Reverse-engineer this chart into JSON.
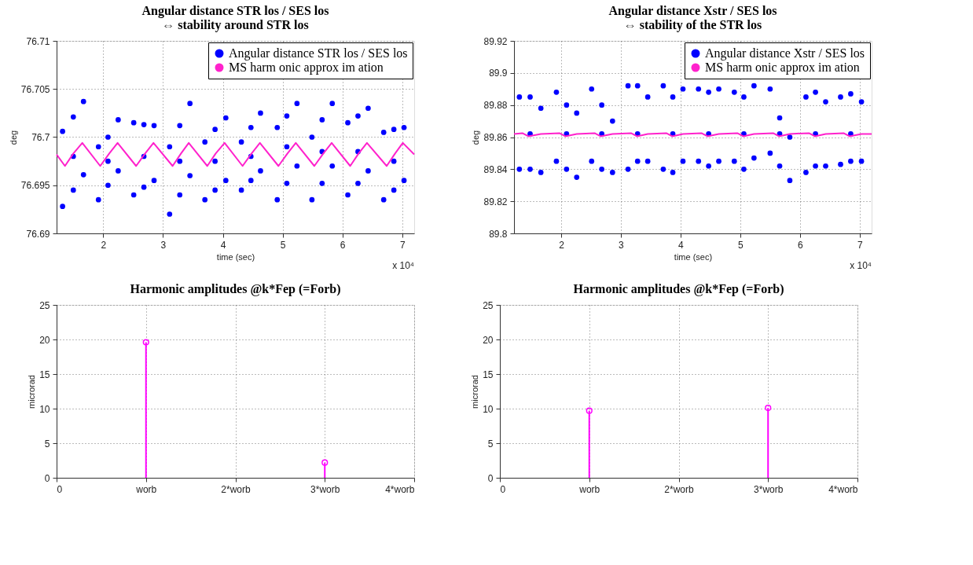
{
  "chart_data": [
    {
      "type": "scatter",
      "title": "Angular distance STR los / SES los\n⇔ stability around STR los",
      "xlabel": "time (sec)",
      "ylabel": "deg",
      "xlim": [
        1.22,
        7.2
      ],
      "xticks": [
        2,
        3,
        4,
        5,
        6,
        7
      ],
      "ylim": [
        76.69,
        76.71
      ],
      "yticks": [
        76.69,
        76.695,
        76.7,
        76.705,
        76.71
      ],
      "grid": true,
      "legend": "top right",
      "annotations": [
        "x 10⁴"
      ],
      "series": [
        {
          "name": "Angular distance STR los / SES los",
          "color": "#0000ff",
          "type": "scatter",
          "marker": "circle",
          "x": [
            1.32,
            1.32,
            1.5,
            1.5,
            1.5,
            1.67,
            1.67,
            1.92,
            1.92,
            2.08,
            2.08,
            2.08,
            2.25,
            2.25,
            2.51,
            2.51,
            2.68,
            2.68,
            2.68,
            2.85,
            2.85,
            3.11,
            3.11,
            3.28,
            3.28,
            3.28,
            3.45,
            3.45,
            3.7,
            3.7,
            3.87,
            3.87,
            3.87,
            4.05,
            4.05,
            4.31,
            4.31,
            4.47,
            4.47,
            4.47,
            4.63,
            4.63,
            4.91,
            4.91,
            5.07,
            5.07,
            5.07,
            5.24,
            5.24,
            5.49,
            5.49,
            5.66,
            5.66,
            5.66,
            5.83,
            5.83,
            6.09,
            6.09,
            6.26,
            6.26,
            6.26,
            6.43,
            6.43,
            6.69,
            6.69,
            6.86,
            6.86,
            6.86,
            7.03,
            7.03
          ],
          "values": [
            76.7006,
            76.6928,
            76.7021,
            76.6945,
            76.698,
            76.7037,
            76.6961,
            76.699,
            76.6935,
            76.7,
            76.695,
            76.6975,
            76.7018,
            76.6965,
            76.7015,
            76.694,
            76.7013,
            76.6948,
            76.698,
            76.7012,
            76.6955,
            76.699,
            76.692,
            76.7012,
            76.694,
            76.6975,
            76.7035,
            76.696,
            76.6995,
            76.6935,
            76.7008,
            76.6945,
            76.6975,
            76.702,
            76.6955,
            76.6995,
            76.6945,
            76.701,
            76.6955,
            76.698,
            76.7025,
            76.6965,
            76.701,
            76.6935,
            76.7022,
            76.6952,
            76.699,
            76.7035,
            76.697,
            76.7,
            76.6935,
            76.7018,
            76.6952,
            76.6985,
            76.7035,
            76.697,
            76.7015,
            76.694,
            76.7022,
            76.6952,
            76.6985,
            76.703,
            76.6965,
            76.7005,
            76.6935,
            76.7008,
            76.6945,
            76.6975,
            76.701,
            76.6955
          ]
        },
        {
          "name": "MS harm onic approx im ation",
          "color": "#ff22cc",
          "type": "line",
          "x": [
            1.22,
            1.36,
            1.5,
            1.65,
            1.95,
            2.1,
            2.24,
            2.55,
            2.7,
            2.84,
            3.16,
            3.3,
            3.43,
            3.74,
            3.88,
            4.03,
            4.33,
            4.48,
            4.62,
            4.93,
            5.08,
            5.22,
            5.53,
            5.68,
            5.82,
            6.13,
            6.27,
            6.41,
            6.74,
            6.88,
            7.01,
            7.2
          ],
          "values": [
            76.6982,
            76.697,
            76.6983,
            76.6994,
            76.697,
            76.6983,
            76.6994,
            76.697,
            76.6983,
            76.6994,
            76.697,
            76.6983,
            76.6994,
            76.697,
            76.6983,
            76.6994,
            76.697,
            76.6983,
            76.6994,
            76.697,
            76.6983,
            76.6994,
            76.697,
            76.6983,
            76.6994,
            76.697,
            76.6983,
            76.6994,
            76.697,
            76.6983,
            76.6994,
            76.6982
          ]
        }
      ]
    },
    {
      "type": "scatter",
      "title": "Angular distance Xstr / SES los\n⇔ stability of the STR los",
      "xlabel": "time (sec)",
      "ylabel": "deg",
      "xlim": [
        1.21,
        7.2
      ],
      "xticks": [
        2,
        3,
        4,
        5,
        6,
        7
      ],
      "ylim": [
        89.8,
        89.92
      ],
      "yticks": [
        89.8,
        89.82,
        89.84,
        89.86,
        89.88,
        89.9,
        89.92
      ],
      "grid": true,
      "legend": "top right",
      "annotations": [
        "x 10⁴"
      ],
      "series": [
        {
          "name": "Angular distance Xstr / SES los",
          "color": "#0000ff",
          "type": "scatter",
          "marker": "circle",
          "x": [
            1.3,
            1.3,
            1.48,
            1.48,
            1.48,
            1.66,
            1.66,
            1.92,
            1.92,
            2.09,
            2.09,
            2.09,
            2.26,
            2.26,
            2.51,
            2.51,
            2.68,
            2.68,
            2.68,
            2.86,
            2.86,
            3.12,
            3.12,
            3.28,
            3.28,
            3.28,
            3.45,
            3.45,
            3.71,
            3.71,
            3.87,
            3.87,
            3.87,
            4.04,
            4.04,
            4.3,
            4.3,
            4.47,
            4.47,
            4.47,
            4.64,
            4.64,
            4.9,
            4.9,
            5.06,
            5.06,
            5.06,
            5.23,
            5.23,
            5.5,
            5.5,
            5.66,
            5.66,
            5.66,
            5.83,
            5.83,
            6.1,
            6.1,
            6.26,
            6.26,
            6.26,
            6.43,
            6.43,
            6.68,
            6.68,
            6.85,
            6.85,
            6.85,
            7.03,
            7.03
          ],
          "values": [
            89.885,
            89.84,
            89.885,
            89.84,
            89.862,
            89.878,
            89.838,
            89.888,
            89.845,
            89.88,
            89.84,
            89.862,
            89.875,
            89.835,
            89.89,
            89.845,
            89.88,
            89.84,
            89.862,
            89.87,
            89.838,
            89.892,
            89.84,
            89.892,
            89.845,
            89.862,
            89.885,
            89.845,
            89.892,
            89.84,
            89.885,
            89.838,
            89.862,
            89.89,
            89.845,
            89.89,
            89.845,
            89.888,
            89.842,
            89.862,
            89.89,
            89.845,
            89.888,
            89.845,
            89.885,
            89.84,
            89.862,
            89.892,
            89.847,
            89.89,
            89.85,
            89.872,
            89.842,
            89.862,
            89.86,
            89.833,
            89.885,
            89.838,
            89.888,
            89.842,
            89.862,
            89.882,
            89.842,
            89.885,
            89.843,
            89.887,
            89.845,
            89.862,
            89.882,
            89.845
          ]
        },
        {
          "name": "MS harm onic approx im ation",
          "color": "#ff22cc",
          "type": "line",
          "x": [
            1.21,
            1.35,
            1.45,
            1.66,
            1.97,
            2.07,
            2.26,
            2.56,
            2.66,
            2.86,
            3.17,
            3.27,
            3.45,
            3.76,
            3.86,
            4.04,
            4.35,
            4.45,
            4.64,
            4.95,
            5.05,
            5.23,
            5.55,
            5.65,
            5.83,
            6.15,
            6.25,
            6.43,
            6.73,
            6.83,
            7.03,
            7.2
          ],
          "values": [
            89.862,
            89.8625,
            89.8605,
            89.862,
            89.8625,
            89.8605,
            89.862,
            89.8625,
            89.8605,
            89.862,
            89.8625,
            89.8605,
            89.862,
            89.8625,
            89.8605,
            89.862,
            89.8625,
            89.8605,
            89.862,
            89.8625,
            89.8605,
            89.862,
            89.8625,
            89.8605,
            89.862,
            89.8625,
            89.8605,
            89.862,
            89.8625,
            89.8605,
            89.862,
            89.862
          ]
        }
      ]
    },
    {
      "type": "lollipop",
      "title": "Harmonic amplitudes @k*Fep (=Forb)",
      "ylabel": "microrad",
      "xlim": [
        0,
        4
      ],
      "xticks": [
        0,
        {
          "value": 1,
          "label": "worb"
        },
        {
          "value": 2,
          "label": "2*worb"
        },
        {
          "value": 3,
          "label": "3*worb"
        },
        {
          "value": 4,
          "label": "4*worb"
        }
      ],
      "ylim": [
        0,
        25
      ],
      "yticks": [
        0,
        5,
        10,
        15,
        20,
        25
      ],
      "grid": true,
      "marker": "circle",
      "series": [
        {
          "color": "#ff00ff",
          "x": [
            1,
            3
          ],
          "values": [
            19.6,
            2.2
          ]
        }
      ]
    },
    {
      "type": "lollipop",
      "title": "Harmonic amplitudes @k*Fep (=Forb)",
      "ylabel": "microrad",
      "xlim": [
        0,
        4
      ],
      "xticks": [
        0,
        {
          "value": 1,
          "label": "worb"
        },
        {
          "value": 2,
          "label": "2*worb"
        },
        {
          "value": 3,
          "label": "3*worb"
        },
        {
          "value": 4,
          "label": "4*worb"
        }
      ],
      "ylim": [
        0,
        25
      ],
      "yticks": [
        0,
        5,
        10,
        15,
        20,
        25
      ],
      "grid": true,
      "marker": "circle",
      "series": [
        {
          "color": "#ff00ff",
          "x": [
            1,
            3
          ],
          "values": [
            9.7,
            10.1
          ]
        }
      ]
    }
  ]
}
